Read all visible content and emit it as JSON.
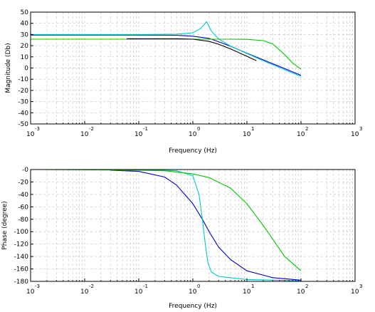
{
  "chart_data": [
    {
      "type": "line",
      "xscale": "log",
      "xlim": [
        0.001,
        1000
      ],
      "ylim": [
        -50,
        50
      ],
      "xlabel": "Frequency (Hz)",
      "ylabel": "Magnitude (Db)",
      "x_tick_labels": [
        {
          "base": "10",
          "exp": "-3"
        },
        {
          "base": "10",
          "exp": "-2"
        },
        {
          "base": "10",
          "exp": "-1"
        },
        {
          "base": "10",
          "exp": "0"
        },
        {
          "base": "10",
          "exp": "1"
        },
        {
          "base": "10",
          "exp": "2"
        },
        {
          "base": "10",
          "exp": "3"
        }
      ],
      "y_ticks": [
        50,
        40,
        30,
        20,
        10,
        0,
        -10,
        -20,
        -30,
        -40,
        -50
      ],
      "y_tick_labels": [
        "50",
        "40",
        "30",
        "20",
        "10",
        "0",
        "-10",
        "-20",
        "-30",
        "-40",
        "-50"
      ],
      "grid": true,
      "series": [
        {
          "color": "#0000c8",
          "x": [
            0.001,
            0.01,
            0.1,
            0.5,
            1,
            2,
            3,
            5,
            10,
            20,
            50,
            100
          ],
          "y": [
            29.5,
            29.5,
            29.5,
            29.3,
            28.5,
            26.5,
            23.5,
            19.4,
            13.2,
            7.3,
            -0.5,
            -6.5
          ]
        },
        {
          "color": "#00c8c8",
          "x": [
            0.001,
            0.01,
            0.1,
            0.5,
            1,
            1.4,
            1.8,
            2.2,
            3,
            5,
            10,
            20,
            50,
            100
          ],
          "y": [
            30.0,
            30.0,
            30.0,
            30.3,
            31.5,
            35.5,
            41.5,
            33.0,
            26.0,
            19.6,
            13.0,
            6.5,
            -1.5,
            -7.5
          ]
        },
        {
          "color": "#00c800",
          "x": [
            0.001,
            0.01,
            0.1,
            1,
            5,
            10,
            20,
            30,
            50,
            70,
            100
          ],
          "y": [
            25.8,
            25.8,
            25.8,
            25.8,
            25.8,
            25.7,
            24.5,
            21.5,
            12.0,
            4.5,
            -1.0
          ]
        },
        {
          "color": "#000000",
          "x": [
            0.06,
            0.1,
            0.5,
            1,
            2,
            3,
            5,
            10,
            15
          ],
          "y": [
            26.2,
            26.2,
            26.2,
            25.8,
            23.8,
            21.3,
            17.0,
            10.5,
            6.5
          ]
        }
      ]
    },
    {
      "type": "line",
      "xscale": "log",
      "xlim": [
        0.001,
        1000
      ],
      "ylim": [
        -180,
        0
      ],
      "xlabel": "Frequency (Hz)",
      "ylabel": "Phase (degree)",
      "x_tick_labels": [
        {
          "base": "10",
          "exp": "-3"
        },
        {
          "base": "10",
          "exp": "-2"
        },
        {
          "base": "10",
          "exp": "-1"
        },
        {
          "base": "10",
          "exp": "0"
        },
        {
          "base": "10",
          "exp": "1"
        },
        {
          "base": "10",
          "exp": "2"
        },
        {
          "base": "10",
          "exp": "3"
        }
      ],
      "y_ticks": [
        0,
        -20,
        -40,
        -60,
        -80,
        -100,
        -120,
        -140,
        -160,
        -180
      ],
      "y_tick_labels": [
        "-0",
        "-20",
        "-40",
        "-60",
        "-80",
        "-100",
        "-120",
        "-140",
        "-160",
        "-180"
      ],
      "grid": true,
      "series": [
        {
          "color": "#0000c8",
          "x": [
            0.03,
            0.1,
            0.3,
            0.5,
            1,
            1.5,
            2,
            3,
            5,
            10,
            30,
            100
          ],
          "y": [
            -1,
            -3,
            -12,
            -25,
            -55,
            -80,
            -100,
            -125,
            -145,
            -163,
            -174,
            -178
          ]
        },
        {
          "color": "#00c8c8",
          "x": [
            0.001,
            0.1,
            0.5,
            1,
            1.3,
            1.5,
            1.6,
            1.7,
            1.9,
            2.2,
            3,
            10,
            100
          ],
          "y": [
            0,
            0,
            -2,
            -10,
            -40,
            -80,
            -100,
            -120,
            -150,
            -165,
            -172,
            -177,
            -179
          ]
        },
        {
          "color": "#00c800",
          "x": [
            0.001,
            0.1,
            0.3,
            1,
            2,
            5,
            10,
            20,
            50,
            100
          ],
          "y": [
            0,
            -1,
            -2,
            -7,
            -13,
            -30,
            -55,
            -90,
            -140,
            -163
          ]
        }
      ]
    }
  ]
}
